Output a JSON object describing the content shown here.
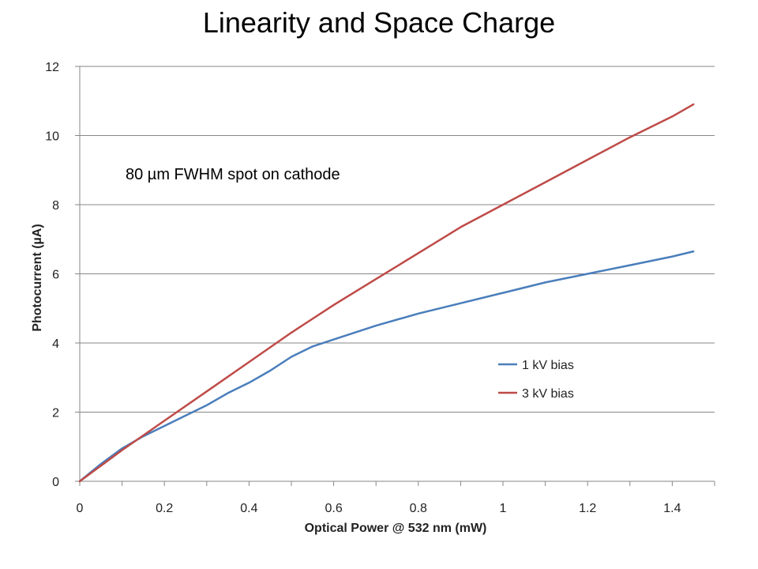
{
  "chart_data": {
    "type": "line",
    "title": "Linearity and Space Charge",
    "xlabel": "Optical Power @ 532 nm (mW)",
    "ylabel": "Photocurrent (µA)",
    "xlim": [
      0,
      1.5
    ],
    "ylim": [
      0,
      12
    ],
    "xticks": [
      "0",
      "0.2",
      "0.4",
      "0.6",
      "0.8",
      "1",
      "1.2",
      "1.4"
    ],
    "yticks": [
      "0",
      "2",
      "4",
      "6",
      "8",
      "10",
      "12"
    ],
    "grid": "horizontal",
    "legend_position": "right",
    "annotation": "80 µm FWHM spot on cathode",
    "series": [
      {
        "name": "1 kV bias",
        "color": "#4a7ebb",
        "x": [
          0,
          0.05,
          0.1,
          0.15,
          0.2,
          0.25,
          0.3,
          0.35,
          0.4,
          0.45,
          0.5,
          0.55,
          0.6,
          0.7,
          0.8,
          0.9,
          1.0,
          1.1,
          1.2,
          1.3,
          1.4,
          1.45
        ],
        "y": [
          0,
          0.5,
          0.95,
          1.3,
          1.6,
          1.9,
          2.2,
          2.55,
          2.85,
          3.2,
          3.6,
          3.9,
          4.1,
          4.5,
          4.85,
          5.15,
          5.45,
          5.75,
          6.0,
          6.25,
          6.5,
          6.65
        ]
      },
      {
        "name": "3 kV bias",
        "color": "#be4b48",
        "x": [
          0,
          0.1,
          0.2,
          0.3,
          0.4,
          0.5,
          0.6,
          0.7,
          0.8,
          0.9,
          1.0,
          1.1,
          1.2,
          1.3,
          1.4,
          1.45
        ],
        "y": [
          0,
          0.9,
          1.75,
          2.6,
          3.45,
          4.3,
          5.1,
          5.85,
          6.6,
          7.35,
          8.0,
          8.65,
          9.3,
          9.95,
          10.55,
          10.9
        ]
      }
    ]
  }
}
